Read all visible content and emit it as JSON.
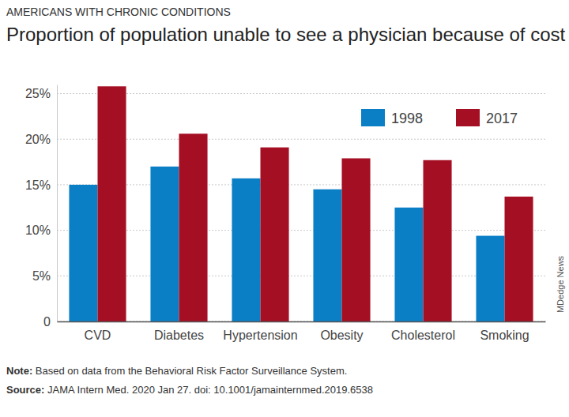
{
  "chart_data": {
    "type": "bar",
    "subtitle": "AMERICANS WITH CHRONIC CONDITIONS",
    "title": "Proportion of population unable to see a physician because of cost",
    "categories": [
      "CVD",
      "Diabetes",
      "Hypertension",
      "Obesity",
      "Cholesterol",
      "Smoking"
    ],
    "series": [
      {
        "name": "1998",
        "color": "#0a7fc6",
        "values": [
          15.0,
          17.0,
          15.7,
          14.5,
          12.5,
          9.4
        ]
      },
      {
        "name": "2017",
        "color": "#a50f23",
        "values": [
          25.8,
          20.6,
          19.1,
          17.9,
          17.7,
          13.7
        ]
      }
    ],
    "ylim": [
      0,
      26
    ],
    "yticks": [
      0,
      {
        "value": 5,
        "label": "5%"
      },
      {
        "value": 10,
        "label": "10%"
      },
      {
        "value": 15,
        "label": "15%"
      },
      {
        "value": 20,
        "label": "20%"
      },
      {
        "value": 25,
        "label": "25%"
      }
    ],
    "grid": true,
    "legend": "top-right",
    "annotations": [
      "Note: Based on data from the Behavioral Risk Factor Surveillance System.",
      "Source: JAMA Intern Med. 2020 Jan 27. doi: 10.1001/jamainternmed.2019.6538",
      "MDedge News"
    ]
  }
}
